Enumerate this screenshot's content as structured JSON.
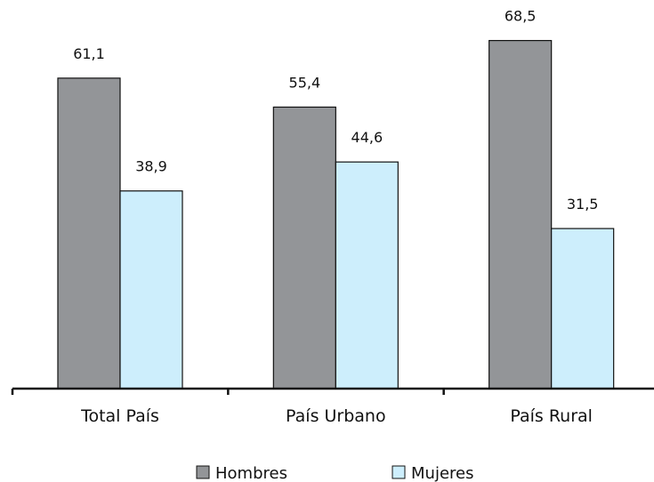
{
  "chart_data": {
    "type": "bar",
    "categories": [
      "Total País",
      "País Urbano",
      "País Rural"
    ],
    "series": [
      {
        "name": "Hombres",
        "values": [
          61.1,
          55.4,
          68.5
        ],
        "value_labels": [
          "61,1",
          "55,4",
          "68,5"
        ],
        "color": "#939598"
      },
      {
        "name": "Mujeres",
        "values": [
          38.9,
          44.6,
          31.5
        ],
        "value_labels": [
          "38,9",
          "44,6",
          "31,5"
        ],
        "color": "#cdeefc"
      }
    ],
    "ylim": [
      0,
      70
    ],
    "grid": false,
    "legend_position": "bottom"
  }
}
